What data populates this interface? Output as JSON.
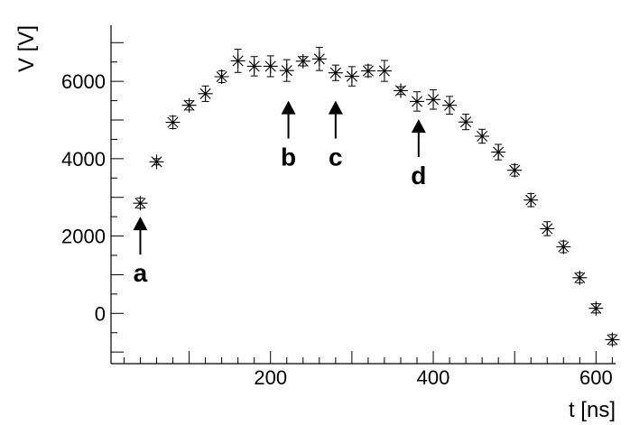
{
  "chart_data": {
    "type": "scatter",
    "xlabel": "t [ns]",
    "ylabel": "V [V]",
    "xlim": [
      4,
      624
    ],
    "ylim": [
      -1300,
      7450
    ],
    "x_ticks": [
      200,
      400,
      600
    ],
    "y_ticks": [
      0,
      2000,
      4000,
      6000
    ],
    "x_minor_step": 20,
    "y_minor_step": 500,
    "grid": false,
    "marker": "asterisk",
    "color": "#000000",
    "series": [
      {
        "x": [
          40,
          60,
          80,
          100,
          120,
          140,
          160,
          180,
          200,
          220,
          240,
          260,
          280,
          300,
          320,
          340,
          360,
          380,
          400,
          420,
          440,
          460,
          480,
          500,
          520,
          540,
          560,
          580,
          600,
          620
        ],
        "y": [
          2850,
          3920,
          4940,
          5380,
          5680,
          6120,
          6530,
          6390,
          6390,
          6280,
          6520,
          6580,
          6220,
          6130,
          6270,
          6270,
          5760,
          5480,
          5530,
          5380,
          4950,
          4580,
          4170,
          3700,
          2930,
          2190,
          1720,
          920,
          130,
          -680
        ],
        "y_err": [
          130,
          80,
          160,
          120,
          200,
          150,
          300,
          250,
          270,
          280,
          120,
          300,
          200,
          250,
          150,
          270,
          100,
          250,
          250,
          230,
          200,
          180,
          200,
          150,
          170,
          180,
          150,
          130,
          120,
          130
        ]
      }
    ],
    "annotations": [
      {
        "label": "a",
        "x": 40,
        "y": 2500
      },
      {
        "label": "b",
        "x": 222,
        "y": 5500
      },
      {
        "label": "c",
        "x": 280,
        "y": 5500
      },
      {
        "label": "d",
        "x": 382,
        "y": 5020
      }
    ]
  }
}
